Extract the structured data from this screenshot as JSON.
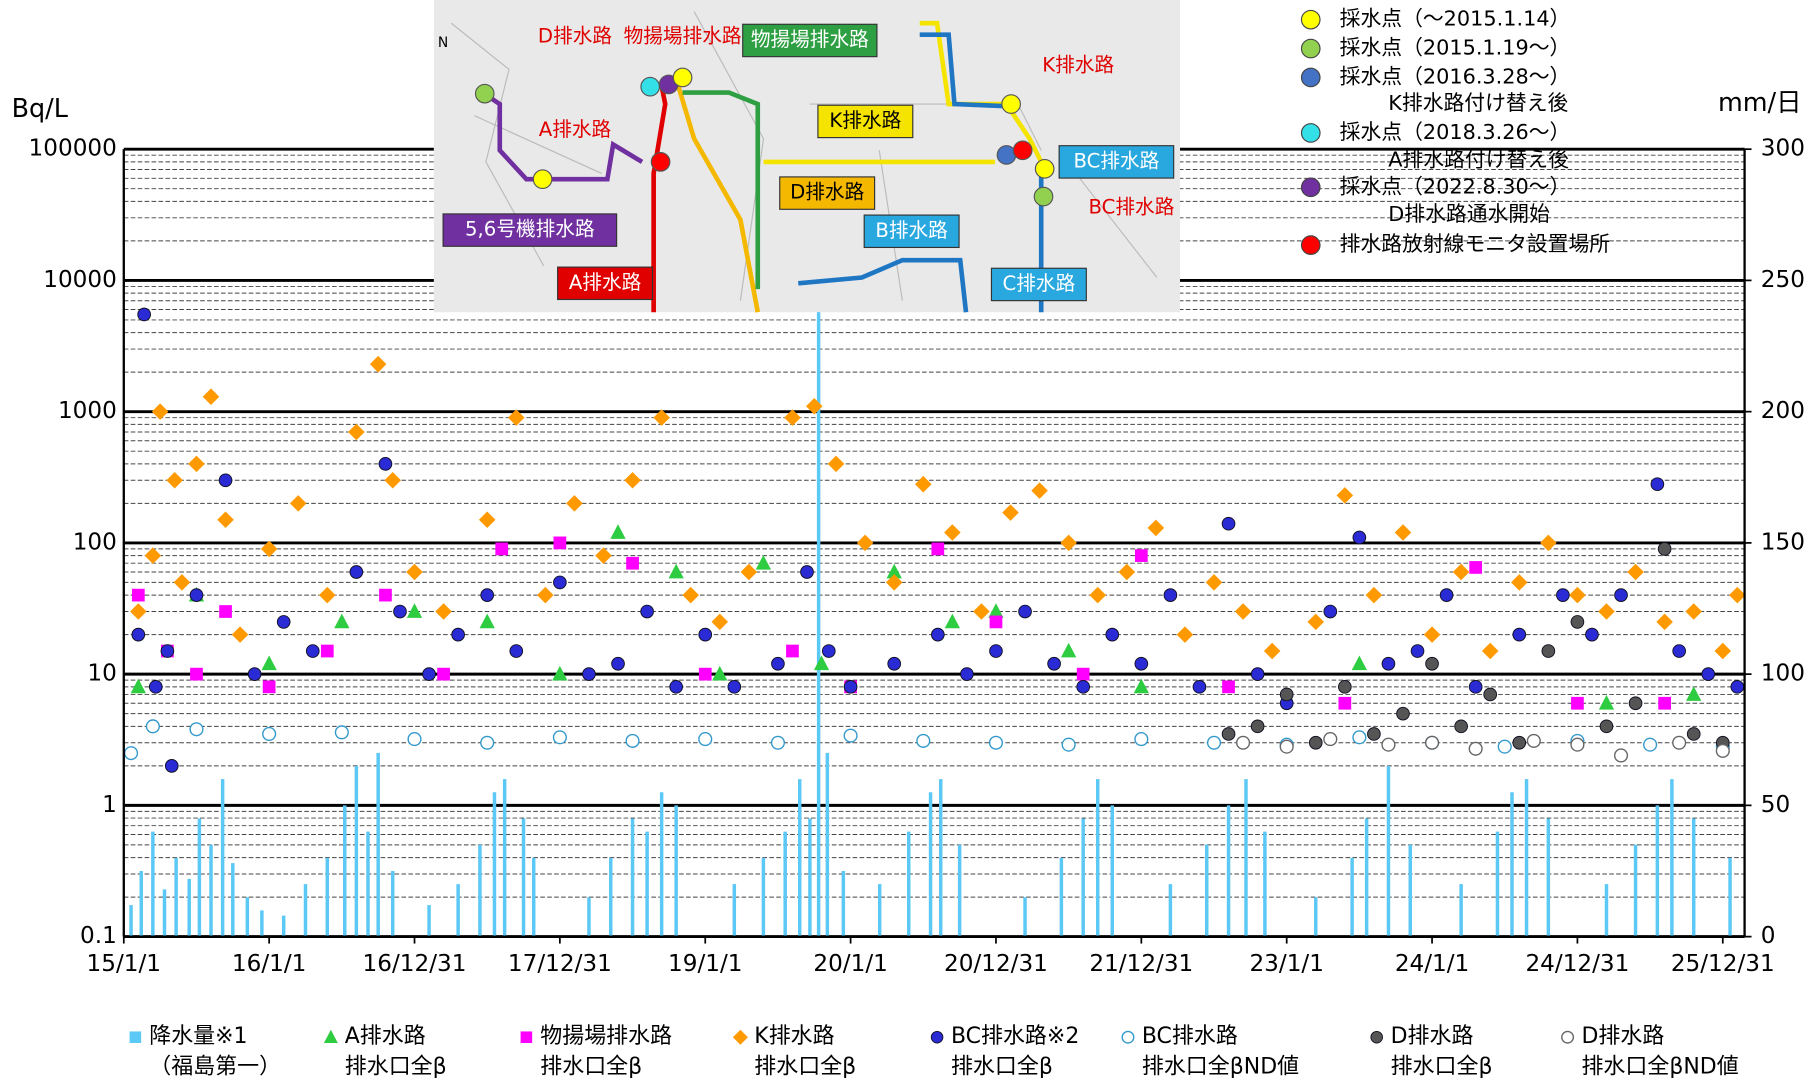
{
  "chart_data": {
    "type": "scatter",
    "y_label": "Bq/L",
    "y2_label": "mm/日",
    "log_y": true,
    "ylim": [
      0.1,
      100000
    ],
    "yticks": [
      0.1,
      1,
      10,
      100,
      1000,
      10000,
      100000
    ],
    "y2lim": [
      0,
      300
    ],
    "y2ticks": [
      0,
      50,
      100,
      150,
      200,
      250,
      300
    ],
    "xlim": [
      2015,
      2026.15
    ],
    "xticks": [
      {
        "value": 2015,
        "label": "15/1/1"
      },
      {
        "value": 2016,
        "label": "16/1/1"
      },
      {
        "value": 2017,
        "label": "16/12/31"
      },
      {
        "value": 2018,
        "label": "17/12/31"
      },
      {
        "value": 2019,
        "label": "19/1/1"
      },
      {
        "value": 2020,
        "label": "20/1/1"
      },
      {
        "value": 2021,
        "label": "20/12/31"
      },
      {
        "value": 2022,
        "label": "21/12/31"
      },
      {
        "value": 2023,
        "label": "23/1/1"
      },
      {
        "value": 2024,
        "label": "24/1/1"
      },
      {
        "value": 2025,
        "label": "24/12/31"
      },
      {
        "value": 2026,
        "label": "25/12/31"
      }
    ],
    "series": [
      {
        "name": "降水量※1\n（福島第一）",
        "color": "#5bc8f5",
        "marker": "bar",
        "axis": "y2",
        "x": [
          2015.05,
          2015.12,
          2015.2,
          2015.28,
          2015.36,
          2015.45,
          2015.52,
          2015.6,
          2015.68,
          2015.75,
          2015.85,
          2015.95,
          2016.1,
          2016.25,
          2016.4,
          2016.52,
          2016.6,
          2016.68,
          2016.75,
          2016.85,
          2017.1,
          2017.3,
          2017.45,
          2017.55,
          2017.62,
          2017.75,
          2017.82,
          2018.2,
          2018.35,
          2018.5,
          2018.6,
          2018.7,
          2018.8,
          2019.2,
          2019.4,
          2019.55,
          2019.65,
          2019.72,
          2019.78,
          2019.84,
          2019.95,
          2020.2,
          2020.4,
          2020.55,
          2020.62,
          2020.75,
          2021.2,
          2021.45,
          2021.6,
          2021.7,
          2021.8,
          2022.2,
          2022.45,
          2022.6,
          2022.72,
          2022.85,
          2023.2,
          2023.45,
          2023.55,
          2023.7,
          2023.85,
          2024.2,
          2024.45,
          2024.55,
          2024.65,
          2024.8,
          2025.2,
          2025.4,
          2025.55,
          2025.65,
          2025.8,
          2026.05
        ],
        "values": [
          12,
          25,
          40,
          18,
          30,
          22,
          45,
          35,
          60,
          28,
          15,
          10,
          8,
          20,
          30,
          50,
          65,
          40,
          70,
          25,
          12,
          20,
          35,
          55,
          60,
          45,
          30,
          15,
          30,
          45,
          40,
          55,
          50,
          20,
          30,
          40,
          60,
          45,
          290,
          70,
          25,
          20,
          40,
          55,
          60,
          35,
          15,
          30,
          45,
          60,
          50,
          20,
          35,
          50,
          60,
          40,
          15,
          30,
          45,
          65,
          35,
          20,
          40,
          55,
          60,
          45,
          20,
          35,
          50,
          60,
          45,
          30
        ]
      },
      {
        "name": "A排水路\n排水口全β",
        "color": "#2ecc40",
        "marker": "triangle",
        "x": [
          2015.1,
          2015.5,
          2016.0,
          2016.5,
          2017.0,
          2017.5,
          2018.0,
          2018.4,
          2018.8,
          2019.1,
          2019.4,
          2019.8,
          2020.3,
          2020.7,
          2021.0,
          2021.5,
          2022.0,
          2023.5,
          2025.2,
          2025.8
        ],
        "values": [
          8,
          40,
          12,
          25,
          30,
          25,
          10,
          120,
          60,
          10,
          70,
          12,
          60,
          25,
          30,
          15,
          8,
          12,
          6,
          7
        ]
      },
      {
        "name": "物揚場排水路\n排水口全β",
        "color": "#ff00ff",
        "marker": "square",
        "x": [
          2015.1,
          2015.3,
          2015.5,
          2015.7,
          2016.0,
          2016.4,
          2016.8,
          2017.2,
          2017.6,
          2018.0,
          2018.5,
          2019.0,
          2019.6,
          2020.0,
          2020.6,
          2021.0,
          2021.6,
          2022.0,
          2022.6,
          2023.4,
          2024.3,
          2025.0,
          2025.6
        ],
        "values": [
          40,
          15,
          10,
          30,
          8,
          15,
          40,
          10,
          90,
          100,
          70,
          10,
          15,
          8,
          90,
          25,
          10,
          80,
          8,
          6,
          65,
          6,
          6
        ]
      },
      {
        "name": "K排水路\n排水口全β",
        "color": "#ff9900",
        "marker": "diamond",
        "x": [
          2015.1,
          2015.2,
          2015.25,
          2015.35,
          2015.4,
          2015.5,
          2015.6,
          2015.7,
          2015.8,
          2016.0,
          2016.2,
          2016.4,
          2016.6,
          2016.75,
          2016.85,
          2017.0,
          2017.2,
          2017.5,
          2017.7,
          2017.9,
          2018.1,
          2018.3,
          2018.5,
          2018.7,
          2018.9,
          2019.1,
          2019.3,
          2019.6,
          2019.75,
          2019.9,
          2020.1,
          2020.3,
          2020.5,
          2020.7,
          2020.9,
          2021.1,
          2021.3,
          2021.5,
          2021.7,
          2021.9,
          2022.1,
          2022.3,
          2022.5,
          2022.7,
          2022.9,
          2023.2,
          2023.4,
          2023.6,
          2023.8,
          2024.0,
          2024.2,
          2024.4,
          2024.6,
          2024.8,
          2025.0,
          2025.2,
          2025.4,
          2025.6,
          2025.8,
          2026.0,
          2026.1
        ],
        "values": [
          30,
          80,
          1000,
          300,
          50,
          400,
          1300,
          150,
          20,
          90,
          200,
          40,
          700,
          2300,
          300,
          60,
          30,
          150,
          900,
          40,
          200,
          80,
          300,
          900,
          40,
          25,
          60,
          900,
          1100,
          400,
          100,
          50,
          280,
          120,
          30,
          170,
          250,
          100,
          40,
          60,
          130,
          20,
          50,
          30,
          15,
          25,
          230,
          40,
          120,
          20,
          60,
          15,
          50,
          100,
          40,
          30,
          60,
          25,
          30,
          15,
          40
        ]
      },
      {
        "name": "BC排水路※2\n排水口全β",
        "color": "#2b2bd6",
        "marker": "circle",
        "x": [
          2015.1,
          2015.14,
          2015.22,
          2015.3,
          2015.33,
          2015.5,
          2015.7,
          2015.9,
          2016.1,
          2016.3,
          2016.6,
          2016.8,
          2016.9,
          2017.1,
          2017.3,
          2017.5,
          2017.7,
          2018.0,
          2018.2,
          2018.4,
          2018.6,
          2018.8,
          2019.0,
          2019.2,
          2019.5,
          2019.7,
          2019.85,
          2020.0,
          2020.3,
          2020.6,
          2020.8,
          2021.0,
          2021.2,
          2021.4,
          2021.6,
          2021.8,
          2022.0,
          2022.2,
          2022.4,
          2022.6,
          2022.8,
          2023.0,
          2023.3,
          2023.5,
          2023.7,
          2023.9,
          2024.1,
          2024.3,
          2024.6,
          2024.9,
          2025.1,
          2025.3,
          2025.55,
          2025.7,
          2025.9,
          2026.1
        ],
        "values": [
          20,
          5500,
          8,
          15,
          2,
          40,
          300,
          10,
          25,
          15,
          60,
          400,
          30,
          10,
          20,
          40,
          15,
          50,
          10,
          12,
          30,
          8,
          20,
          8,
          12,
          60,
          15,
          8,
          12,
          20,
          10,
          15,
          30,
          12,
          8,
          20,
          12,
          40,
          8,
          140,
          10,
          6,
          30,
          110,
          12,
          15,
          40,
          8,
          20,
          40,
          20,
          40,
          280,
          15,
          10,
          8
        ]
      },
      {
        "name": "BC排水路\n排水口全βND値",
        "color": "#3399cc",
        "marker": "open-circle",
        "x": [
          2015.05,
          2015.2,
          2015.5,
          2016.0,
          2016.5,
          2017.0,
          2017.5,
          2018.0,
          2018.5,
          2019.0,
          2019.5,
          2020.0,
          2020.5,
          2021.0,
          2021.5,
          2022.0,
          2022.5,
          2023.0,
          2023.5,
          2024.0,
          2024.5,
          2025.0,
          2025.5,
          2026.0
        ],
        "values": [
          2.5,
          4,
          3.8,
          3.5,
          3.6,
          3.2,
          3.0,
          3.3,
          3.1,
          3.2,
          3.0,
          3.4,
          3.1,
          3.0,
          2.9,
          3.2,
          3.0,
          2.9,
          3.3,
          3.0,
          2.8,
          3.1,
          2.9,
          2.8
        ]
      },
      {
        "name": "D排水路\n排水口全β",
        "color": "#555555",
        "marker": "circle",
        "x": [
          2022.6,
          2022.8,
          2023.0,
          2023.2,
          2023.4,
          2023.6,
          2023.8,
          2024.0,
          2024.2,
          2024.4,
          2024.6,
          2024.8,
          2025.0,
          2025.2,
          2025.4,
          2025.6,
          2025.8,
          2026.0
        ],
        "values": [
          3.5,
          4,
          7,
          3,
          8,
          3.5,
          5,
          12,
          4,
          7,
          3,
          15,
          25,
          4,
          6,
          90,
          3.5,
          3
        ]
      },
      {
        "name": "D排水路\n排水口全βND値",
        "color": "#666666",
        "marker": "open-circle",
        "x": [
          2022.7,
          2023.0,
          2023.3,
          2023.7,
          2024.0,
          2024.3,
          2024.7,
          2025.0,
          2025.3,
          2025.7,
          2026.0
        ],
        "values": [
          3,
          2.8,
          3.2,
          2.9,
          3,
          2.7,
          3.1,
          2.9,
          2.4,
          3,
          2.6
        ]
      }
    ]
  },
  "map": {
    "labels": [
      "N",
      "D排水路",
      "物揚場排水路",
      "物揚場排水路",
      "K排水路",
      "A排水路",
      "K排水路",
      "BC排水路",
      "D排水路",
      "BC排水路",
      "5,6号機排水路",
      "B排水路",
      "A排水路",
      "C排水路"
    ]
  },
  "map_legend": [
    {
      "label": "採水点（～2015.1.14）",
      "color": "#ffff00"
    },
    {
      "label": "採水点（2015.1.19～）",
      "color": "#92d050"
    },
    {
      "label": "採水点（2016.3.28～）",
      "color": "#4472c4",
      "note": "K排水路付け替え後"
    },
    {
      "label": "採水点（2018.3.26～）",
      "color": "#33e0e8",
      "note": "A排水路付け替え後"
    },
    {
      "label": "採水点（2022.8.30～）",
      "color": "#7030a0",
      "note": "D排水路通水開始"
    },
    {
      "label": "排水路放射線モニタ設置場所",
      "color": "#ff0000"
    }
  ]
}
